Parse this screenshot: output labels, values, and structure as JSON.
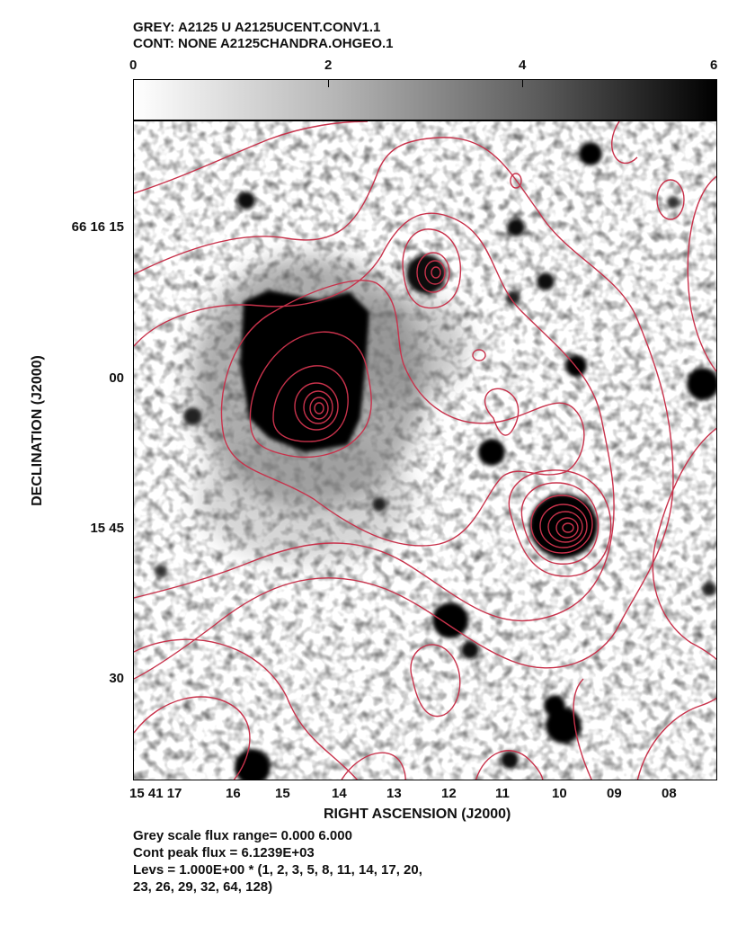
{
  "header": {
    "line1": "GREY: A2125 U  A2125UCENT.CONV1.1",
    "line2": "CONT: NONE  A2125CHANDRA.OHGEO.1"
  },
  "colorbar": {
    "ticks": [
      "0",
      "2",
      "4",
      "6"
    ],
    "range": [
      0,
      6
    ]
  },
  "axes": {
    "ylabel": "DECLINATION (J2000)",
    "xlabel": "RIGHT ASCENSION (J2000)",
    "yticks": [
      "66 16 15",
      "00",
      "15 45",
      "30"
    ],
    "xticks": [
      "15 41 17",
      "16",
      "15",
      "14",
      "13",
      "12",
      "11",
      "10",
      "09",
      "08"
    ]
  },
  "footer": {
    "line1": "Grey scale flux range= 0.000 6.000",
    "line2": "Cont peak flux =  6.1239E+03",
    "line3": "Levs = 1.000E+00 * (1, 2, 3, 5, 8, 11, 14, 17, 20,",
    "line4": "23, 26, 29, 32, 64, 128)"
  },
  "colors": {
    "contour": "#c8324b",
    "grey_dark": "#000000",
    "grey_light": "#ffffff"
  }
}
